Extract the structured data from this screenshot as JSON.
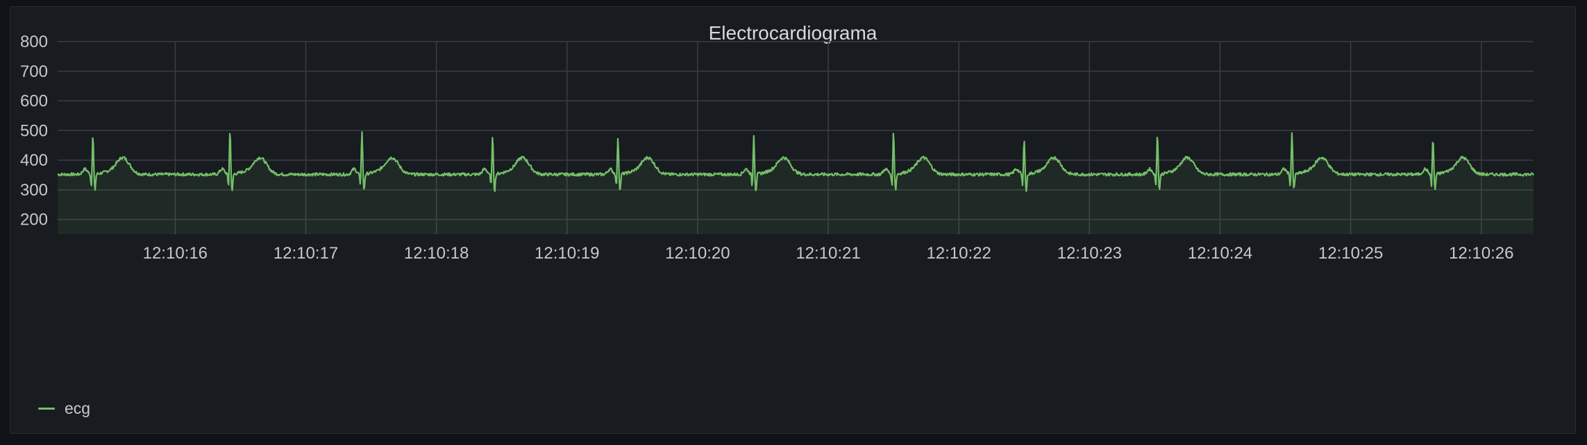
{
  "panel": {
    "title": "Electrocardiograma"
  },
  "colors": {
    "series": "#73bf69",
    "grid": "#3a3d42",
    "background": "#181b1f"
  },
  "chart_data": {
    "type": "line",
    "title": "Electrocardiograma",
    "xlabel": "",
    "ylabel": "",
    "ylim": [
      150,
      800
    ],
    "yticks": [
      200,
      300,
      400,
      500,
      600,
      700,
      800
    ],
    "xticks": [
      "12:10:16",
      "12:10:17",
      "12:10:18",
      "12:10:19",
      "12:10:20",
      "12:10:21",
      "12:10:22",
      "12:10:23",
      "12:10:24",
      "12:10:25",
      "12:10:26"
    ],
    "x_range_seconds": [
      "12:10:15.1",
      "12:10:26.4"
    ],
    "grid": true,
    "fill_below": true,
    "legend_placement": "bottom-left",
    "series": [
      {
        "name": "ecg",
        "baseline": 352,
        "beats": [
          {
            "time": "12:10:15.37",
            "r_peak": 485,
            "s_trough": 298
          },
          {
            "time": "12:10:16.42",
            "r_peak": 500,
            "s_trough": 292
          },
          {
            "time": "12:10:17.43",
            "r_peak": 500,
            "s_trough": 297
          },
          {
            "time": "12:10:18.43",
            "r_peak": 478,
            "s_trough": 296
          },
          {
            "time": "12:10:19.39",
            "r_peak": 478,
            "s_trough": 297
          },
          {
            "time": "12:10:20.43",
            "r_peak": 487,
            "s_trough": 295
          },
          {
            "time": "12:10:21.50",
            "r_peak": 497,
            "s_trough": 300
          },
          {
            "time": "12:10:22.50",
            "r_peak": 475,
            "s_trough": 295
          },
          {
            "time": "12:10:23.52",
            "r_peak": 490,
            "s_trough": 300
          },
          {
            "time": "12:10:24.55",
            "r_peak": 497,
            "s_trough": 300
          },
          {
            "time": "12:10:25.63",
            "r_peak": 475,
            "s_trough": 300
          }
        ],
        "t_wave_peak": 408
      }
    ]
  },
  "legend": {
    "items": [
      {
        "label": "ecg"
      }
    ]
  }
}
